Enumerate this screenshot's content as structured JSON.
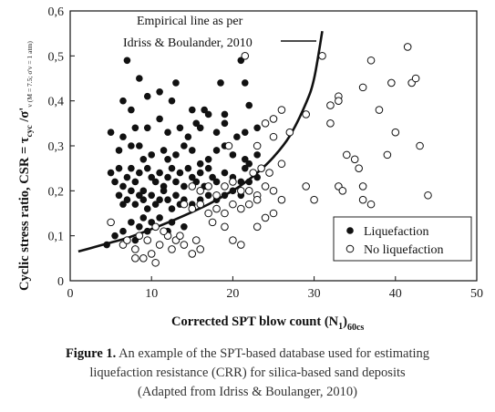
{
  "chart_data": {
    "type": "scatter",
    "xlabel_main": "Corrected SPT blow count (N",
    "xlabel_sub1": "1",
    "xlabel_close": ")",
    "xlabel_sub2": "60cs",
    "ylabel_main": "Cyclic stress ratio, CSR = τ",
    "ylabel_sub1": "cyc",
    "ylabel_mid": " /σ'",
    "ylabel_sub2": "v (M = 7.5; σ'v = 1 atm)",
    "xlim": [
      0,
      50
    ],
    "ylim": [
      0,
      0.6
    ],
    "x_ticks": [
      "0",
      "10",
      "20",
      "30",
      "40",
      "50"
    ],
    "y_ticks": [
      "0",
      "0,1",
      "0,2",
      "0,3",
      "0,4",
      "0,5",
      "0,6"
    ],
    "grid": false,
    "legend_position": "bottom-right",
    "annotation_line1": "Empirical line as per",
    "annotation_line2": "Idriss & Boulander, 2010",
    "series": [
      {
        "name": "Liquefaction",
        "marker": "filled-circle",
        "color": "#111111",
        "points": [
          [
            7,
            0.49
          ],
          [
            8.5,
            0.45
          ],
          [
            13,
            0.44
          ],
          [
            18.5,
            0.44
          ],
          [
            21.5,
            0.44
          ],
          [
            21,
            0.49
          ],
          [
            6.5,
            0.4
          ],
          [
            7.5,
            0.38
          ],
          [
            9.5,
            0.41
          ],
          [
            11,
            0.42
          ],
          [
            12.5,
            0.4
          ],
          [
            15,
            0.38
          ],
          [
            16.5,
            0.38
          ],
          [
            17,
            0.37
          ],
          [
            19,
            0.37
          ],
          [
            22,
            0.39
          ],
          [
            5,
            0.33
          ],
          [
            6.5,
            0.32
          ],
          [
            8,
            0.34
          ],
          [
            9.5,
            0.34
          ],
          [
            11,
            0.36
          ],
          [
            12,
            0.33
          ],
          [
            13.5,
            0.34
          ],
          [
            14.5,
            0.32
          ],
          [
            15.5,
            0.35
          ],
          [
            16,
            0.34
          ],
          [
            18,
            0.33
          ],
          [
            19,
            0.35
          ],
          [
            20.5,
            0.32
          ],
          [
            21.5,
            0.33
          ],
          [
            23,
            0.34
          ],
          [
            6,
            0.29
          ],
          [
            7.5,
            0.3
          ],
          [
            8.5,
            0.3
          ],
          [
            9,
            0.27
          ],
          [
            10,
            0.28
          ],
          [
            11.5,
            0.29
          ],
          [
            12,
            0.27
          ],
          [
            13,
            0.28
          ],
          [
            14,
            0.3
          ],
          [
            15,
            0.29
          ],
          [
            16,
            0.26
          ],
          [
            17,
            0.27
          ],
          [
            18,
            0.29
          ],
          [
            19,
            0.3
          ],
          [
            20,
            0.28
          ],
          [
            21.5,
            0.27
          ],
          [
            22,
            0.26
          ],
          [
            23,
            0.28
          ],
          [
            5,
            0.24
          ],
          [
            5.5,
            0.22
          ],
          [
            6,
            0.25
          ],
          [
            6.5,
            0.21
          ],
          [
            7,
            0.23
          ],
          [
            7.5,
            0.25
          ],
          [
            8,
            0.22
          ],
          [
            8.5,
            0.24
          ],
          [
            9,
            0.2
          ],
          [
            9.5,
            0.25
          ],
          [
            10,
            0.23
          ],
          [
            10.5,
            0.22
          ],
          [
            11,
            0.24
          ],
          [
            11.5,
            0.21
          ],
          [
            12,
            0.23
          ],
          [
            12.5,
            0.25
          ],
          [
            13,
            0.22
          ],
          [
            13.5,
            0.24
          ],
          [
            14,
            0.21
          ],
          [
            14.5,
            0.25
          ],
          [
            15,
            0.23
          ],
          [
            15.5,
            0.22
          ],
          [
            16,
            0.24
          ],
          [
            16.5,
            0.21
          ],
          [
            17,
            0.25
          ],
          [
            17.5,
            0.23
          ],
          [
            18,
            0.22
          ],
          [
            19,
            0.24
          ],
          [
            20,
            0.23
          ],
          [
            21,
            0.22
          ],
          [
            21.5,
            0.25
          ],
          [
            22,
            0.22
          ],
          [
            23,
            0.23
          ],
          [
            6,
            0.19
          ],
          [
            6.5,
            0.17
          ],
          [
            7,
            0.18
          ],
          [
            7.5,
            0.2
          ],
          [
            8,
            0.17
          ],
          [
            8.5,
            0.19
          ],
          [
            9,
            0.18
          ],
          [
            9.5,
            0.16
          ],
          [
            10,
            0.19
          ],
          [
            10.5,
            0.17
          ],
          [
            11,
            0.18
          ],
          [
            11.5,
            0.2
          ],
          [
            12,
            0.18
          ],
          [
            12.5,
            0.16
          ],
          [
            13,
            0.19
          ],
          [
            13.5,
            0.17
          ],
          [
            14,
            0.18
          ],
          [
            15,
            0.17
          ],
          [
            16,
            0.18
          ],
          [
            17,
            0.19
          ],
          [
            18,
            0.18
          ],
          [
            19,
            0.19
          ],
          [
            20,
            0.2
          ],
          [
            21,
            0.19
          ],
          [
            22,
            0.2
          ],
          [
            4.5,
            0.08
          ],
          [
            5.5,
            0.1
          ],
          [
            6.5,
            0.11
          ],
          [
            7.5,
            0.13
          ],
          [
            8,
            0.09
          ],
          [
            8.5,
            0.12
          ],
          [
            9,
            0.14
          ],
          [
            9.5,
            0.11
          ],
          [
            10,
            0.13
          ],
          [
            10.5,
            0.12
          ],
          [
            11,
            0.14
          ],
          [
            12,
            0.11
          ],
          [
            12.5,
            0.13
          ],
          [
            14,
            0.12
          ]
        ]
      },
      {
        "name": "No liquefaction",
        "marker": "open-circle",
        "color": "#111111",
        "points": [
          [
            21.5,
            0.5
          ],
          [
            31,
            0.5
          ],
          [
            37,
            0.49
          ],
          [
            41.5,
            0.52
          ],
          [
            42,
            0.44
          ],
          [
            42.5,
            0.45
          ],
          [
            39.5,
            0.44
          ],
          [
            36,
            0.43
          ],
          [
            33,
            0.41
          ],
          [
            33,
            0.4
          ],
          [
            32,
            0.39
          ],
          [
            38,
            0.38
          ],
          [
            26,
            0.38
          ],
          [
            29,
            0.37
          ],
          [
            32,
            0.35
          ],
          [
            40,
            0.33
          ],
          [
            24,
            0.35
          ],
          [
            25,
            0.36
          ],
          [
            19.5,
            0.3
          ],
          [
            23,
            0.3
          ],
          [
            25,
            0.32
          ],
          [
            27,
            0.33
          ],
          [
            34,
            0.28
          ],
          [
            35,
            0.27
          ],
          [
            39,
            0.28
          ],
          [
            43,
            0.3
          ],
          [
            35.5,
            0.25
          ],
          [
            26,
            0.26
          ],
          [
            23.5,
            0.25
          ],
          [
            22.5,
            0.24
          ],
          [
            24.5,
            0.24
          ],
          [
            15,
            0.21
          ],
          [
            16,
            0.2
          ],
          [
            17,
            0.21
          ],
          [
            18,
            0.19
          ],
          [
            19,
            0.21
          ],
          [
            20,
            0.22
          ],
          [
            21,
            0.2
          ],
          [
            22,
            0.2
          ],
          [
            23,
            0.19
          ],
          [
            24,
            0.21
          ],
          [
            25,
            0.2
          ],
          [
            26,
            0.18
          ],
          [
            29,
            0.21
          ],
          [
            33,
            0.21
          ],
          [
            33.5,
            0.2
          ],
          [
            36,
            0.21
          ],
          [
            36,
            0.18
          ],
          [
            44,
            0.19
          ],
          [
            37,
            0.17
          ],
          [
            30,
            0.18
          ],
          [
            14,
            0.17
          ],
          [
            15,
            0.16
          ],
          [
            16,
            0.17
          ],
          [
            17,
            0.15
          ],
          [
            18,
            0.16
          ],
          [
            19,
            0.15
          ],
          [
            20,
            0.17
          ],
          [
            21,
            0.16
          ],
          [
            22,
            0.17
          ],
          [
            23,
            0.18
          ],
          [
            24,
            0.14
          ],
          [
            25,
            0.15
          ],
          [
            17.5,
            0.13
          ],
          [
            19,
            0.12
          ],
          [
            23,
            0.12
          ],
          [
            20,
            0.09
          ],
          [
            21,
            0.08
          ],
          [
            5,
            0.13
          ],
          [
            6.5,
            0.08
          ],
          [
            7,
            0.09
          ],
          [
            8,
            0.07
          ],
          [
            8.5,
            0.1
          ],
          [
            9,
            0.05
          ],
          [
            9.5,
            0.09
          ],
          [
            10,
            0.06
          ],
          [
            10.5,
            0.04
          ],
          [
            11,
            0.08
          ],
          [
            12,
            0.1
          ],
          [
            12.5,
            0.07
          ],
          [
            13,
            0.09
          ],
          [
            14,
            0.08
          ],
          [
            15,
            0.06
          ],
          [
            15.5,
            0.09
          ],
          [
            16,
            0.07
          ],
          [
            10.5,
            0.12
          ],
          [
            11.5,
            0.11
          ],
          [
            13.5,
            0.1
          ],
          [
            8,
            0.05
          ]
        ]
      }
    ],
    "curve": {
      "name": "Empirical line",
      "points": [
        [
          1,
          0.065
        ],
        [
          3,
          0.075
        ],
        [
          5,
          0.085
        ],
        [
          7,
          0.095
        ],
        [
          9,
          0.108
        ],
        [
          11,
          0.122
        ],
        [
          13,
          0.137
        ],
        [
          15,
          0.153
        ],
        [
          17,
          0.17
        ],
        [
          19,
          0.19
        ],
        [
          21,
          0.212
        ],
        [
          23,
          0.24
        ],
        [
          25,
          0.275
        ],
        [
          27,
          0.322
        ],
        [
          29,
          0.395
        ],
        [
          30,
          0.45
        ],
        [
          31,
          0.555
        ]
      ]
    }
  },
  "caption": {
    "fig_label": "Figure 1.",
    "line1_text": " An example of the SPT-based database used for estimating",
    "line2": "liquefaction resistance (CRR) for silica-based sand deposits",
    "line3": "(Adapted from Idriss & Boulanger, 2010)"
  }
}
